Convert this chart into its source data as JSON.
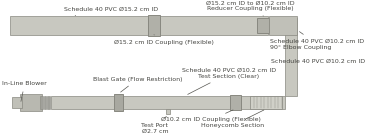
{
  "bg_color": "#f5f5f0",
  "pipe_color": "#c8c8c0",
  "pipe_edge": "#888880",
  "line_color": "#555550",
  "text_color": "#444440",
  "labels": {
    "top_pipe": "Schedule 40 PVC Ø15.2 cm ID",
    "flexible_coupling_top": "Ø15.2 cm ID Coupling (Flexible)",
    "reducer": "Ø15.2 cm ID to Ø10.2 cm ID\nReducer Coupling (Flexible)",
    "elbow": "Schedule 40 PVC Ø10.2 cm ID\n90° Elbow Coupling",
    "bottom_pipe_right": "Schedule 40 PVC Ø10.2 cm ID",
    "test_section": "Schedule 40 PVC Ø10.2 cm ID\nTest Section (Clear)",
    "flexible_coupling_bot": "Ø10.2 cm ID Coupling (Flexible)",
    "blower": "In-Line Blower",
    "blast_gate": "Blast Gate (Flow Restriction)",
    "test_port": "Test Port\nØ2.7 cm",
    "honeycomb": "Honeycomb Section"
  },
  "font_size": 4.5,
  "fig_bg": "#ffffff"
}
